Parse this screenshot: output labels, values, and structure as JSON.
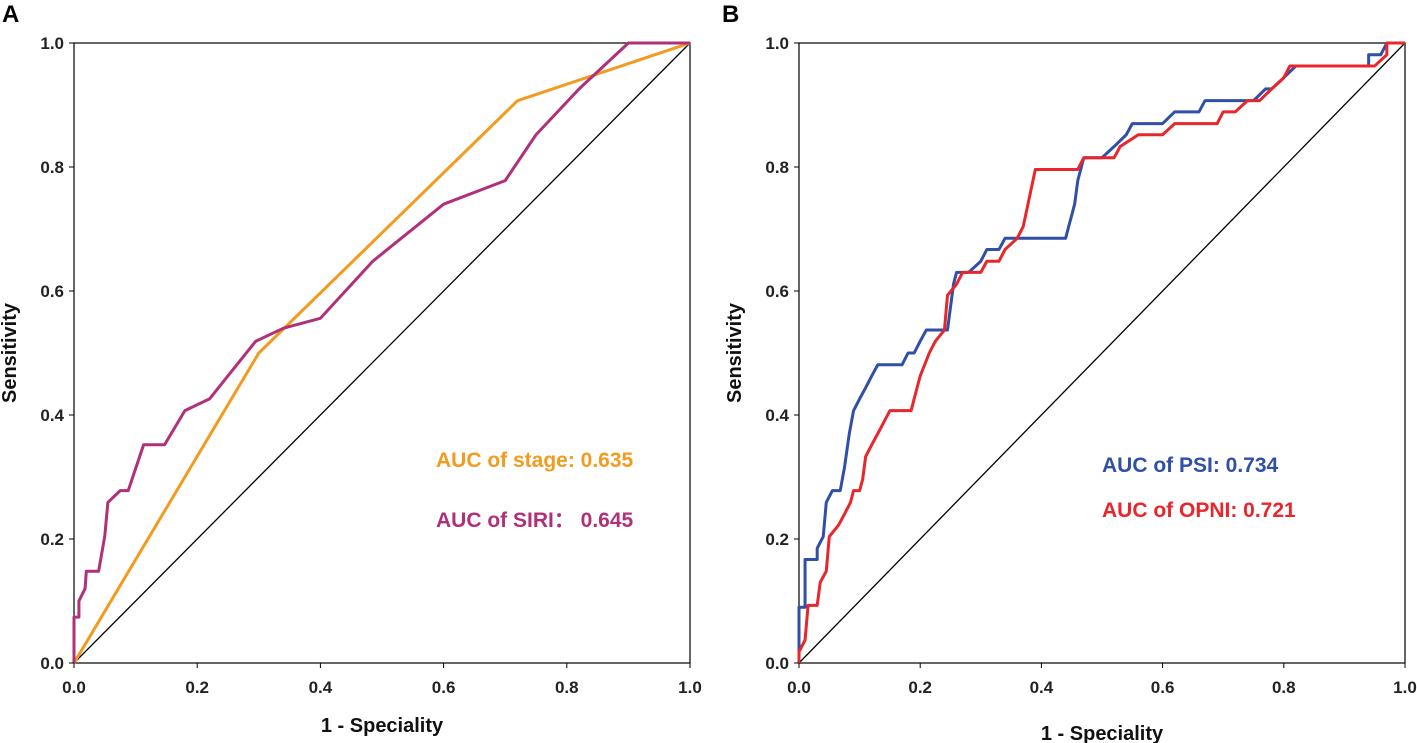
{
  "chart_data": [
    {
      "type": "line",
      "panel_label": "A",
      "xlabel": "1 - Speciality",
      "ylabel": "Sensitivity",
      "xlim": [
        0.0,
        1.0
      ],
      "ylim": [
        0.0,
        1.0
      ],
      "xticks": [
        "0.0",
        "0.2",
        "0.4",
        "0.6",
        "0.8",
        "1.0"
      ],
      "yticks": [
        "0.0",
        "0.2",
        "0.4",
        "0.6",
        "0.8",
        "1.0"
      ],
      "grid": false,
      "reference_line": [
        [
          0,
          0
        ],
        [
          1,
          1
        ]
      ],
      "series": [
        {
          "name": "stage",
          "color": "#F39B1E",
          "points": [
            [
              0,
              0
            ],
            [
              0.3,
              0.5
            ],
            [
              0.72,
              0.907
            ],
            [
              1.0,
              1.0
            ]
          ]
        },
        {
          "name": "SIRI",
          "color": "#B0307A",
          "points": [
            [
              0,
              0
            ],
            [
              0.0,
              0.074
            ],
            [
              0.008,
              0.074
            ],
            [
              0.008,
              0.1
            ],
            [
              0.018,
              0.12
            ],
            [
              0.02,
              0.148
            ],
            [
              0.04,
              0.148
            ],
            [
              0.05,
              0.205
            ],
            [
              0.055,
              0.259
            ],
            [
              0.075,
              0.278
            ],
            [
              0.088,
              0.278
            ],
            [
              0.113,
              0.352
            ],
            [
              0.147,
              0.352
            ],
            [
              0.18,
              0.407
            ],
            [
              0.22,
              0.426
            ],
            [
              0.295,
              0.519
            ],
            [
              0.34,
              0.54
            ],
            [
              0.4,
              0.556
            ],
            [
              0.485,
              0.648
            ],
            [
              0.6,
              0.74
            ],
            [
              0.7,
              0.778
            ],
            [
              0.75,
              0.852
            ],
            [
              0.82,
              0.926
            ],
            [
              0.9,
              1.0
            ],
            [
              1.0,
              1.0
            ]
          ]
        }
      ],
      "annotations": [
        {
          "text": "AUC of stage: 0.635",
          "color": "#F39B1E"
        },
        {
          "text": "AUC of SIRI： 0.645",
          "color": "#B0307A"
        }
      ]
    },
    {
      "type": "line",
      "panel_label": "B",
      "xlabel": "1 - Speciality",
      "ylabel": "Sensitivity",
      "xlim": [
        0.0,
        1.0
      ],
      "ylim": [
        0.0,
        1.0
      ],
      "xticks": [
        "0.0",
        "0.2",
        "0.4",
        "0.6",
        "0.8",
        "1.0"
      ],
      "yticks": [
        "0.0",
        "0.2",
        "0.4",
        "0.6",
        "0.8",
        "1.0"
      ],
      "grid": false,
      "reference_line": [
        [
          0,
          0
        ],
        [
          1,
          1
        ]
      ],
      "series": [
        {
          "name": "PSI",
          "color": "#2F4FA8",
          "points": [
            [
              0,
              0
            ],
            [
              0,
              0.09
            ],
            [
              0.01,
              0.09
            ],
            [
              0.01,
              0.167
            ],
            [
              0.03,
              0.167
            ],
            [
              0.03,
              0.185
            ],
            [
              0.04,
              0.204
            ],
            [
              0.045,
              0.259
            ],
            [
              0.055,
              0.278
            ],
            [
              0.068,
              0.278
            ],
            [
              0.075,
              0.315
            ],
            [
              0.083,
              0.37
            ],
            [
              0.09,
              0.407
            ],
            [
              0.1,
              0.426
            ],
            [
              0.11,
              0.444
            ],
            [
              0.12,
              0.463
            ],
            [
              0.13,
              0.481
            ],
            [
              0.17,
              0.481
            ],
            [
              0.18,
              0.5
            ],
            [
              0.19,
              0.5
            ],
            [
              0.2,
              0.519
            ],
            [
              0.21,
              0.537
            ],
            [
              0.245,
              0.537
            ],
            [
              0.25,
              0.574
            ],
            [
              0.255,
              0.611
            ],
            [
              0.26,
              0.63
            ],
            [
              0.28,
              0.63
            ],
            [
              0.3,
              0.648
            ],
            [
              0.31,
              0.667
            ],
            [
              0.33,
              0.667
            ],
            [
              0.34,
              0.685
            ],
            [
              0.44,
              0.685
            ],
            [
              0.445,
              0.704
            ],
            [
              0.45,
              0.722
            ],
            [
              0.455,
              0.741
            ],
            [
              0.46,
              0.778
            ],
            [
              0.47,
              0.815
            ],
            [
              0.5,
              0.815
            ],
            [
              0.52,
              0.833
            ],
            [
              0.54,
              0.852
            ],
            [
              0.55,
              0.87
            ],
            [
              0.6,
              0.87
            ],
            [
              0.62,
              0.889
            ],
            [
              0.66,
              0.889
            ],
            [
              0.67,
              0.907
            ],
            [
              0.75,
              0.907
            ],
            [
              0.77,
              0.926
            ],
            [
              0.78,
              0.926
            ],
            [
              0.8,
              0.944
            ],
            [
              0.82,
              0.963
            ],
            [
              0.94,
              0.963
            ],
            [
              0.94,
              0.981
            ],
            [
              0.96,
              0.981
            ],
            [
              0.97,
              1.0
            ],
            [
              1.0,
              1.0
            ]
          ]
        },
        {
          "name": "OPNI",
          "color": "#E8262B",
          "points": [
            [
              0,
              0
            ],
            [
              0,
              0.018
            ],
            [
              0.01,
              0.037
            ],
            [
              0.015,
              0.093
            ],
            [
              0.03,
              0.093
            ],
            [
              0.035,
              0.13
            ],
            [
              0.045,
              0.148
            ],
            [
              0.05,
              0.204
            ],
            [
              0.065,
              0.222
            ],
            [
              0.075,
              0.24
            ],
            [
              0.085,
              0.259
            ],
            [
              0.09,
              0.278
            ],
            [
              0.1,
              0.278
            ],
            [
              0.105,
              0.296
            ],
            [
              0.11,
              0.333
            ],
            [
              0.12,
              0.352
            ],
            [
              0.13,
              0.37
            ],
            [
              0.15,
              0.407
            ],
            [
              0.185,
              0.407
            ],
            [
              0.19,
              0.426
            ],
            [
              0.2,
              0.463
            ],
            [
              0.215,
              0.5
            ],
            [
              0.225,
              0.519
            ],
            [
              0.24,
              0.537
            ],
            [
              0.245,
              0.593
            ],
            [
              0.26,
              0.611
            ],
            [
              0.27,
              0.63
            ],
            [
              0.3,
              0.63
            ],
            [
              0.31,
              0.648
            ],
            [
              0.33,
              0.648
            ],
            [
              0.34,
              0.667
            ],
            [
              0.36,
              0.685
            ],
            [
              0.37,
              0.704
            ],
            [
              0.39,
              0.796
            ],
            [
              0.46,
              0.796
            ],
            [
              0.47,
              0.815
            ],
            [
              0.52,
              0.815
            ],
            [
              0.53,
              0.833
            ],
            [
              0.56,
              0.852
            ],
            [
              0.6,
              0.852
            ],
            [
              0.62,
              0.87
            ],
            [
              0.69,
              0.87
            ],
            [
              0.7,
              0.889
            ],
            [
              0.72,
              0.889
            ],
            [
              0.74,
              0.907
            ],
            [
              0.76,
              0.907
            ],
            [
              0.78,
              0.926
            ],
            [
              0.8,
              0.944
            ],
            [
              0.81,
              0.963
            ],
            [
              0.95,
              0.963
            ],
            [
              0.97,
              0.981
            ],
            [
              0.97,
              1.0
            ],
            [
              1.0,
              1.0
            ]
          ]
        }
      ],
      "annotations": [
        {
          "text": "AUC of PSI: 0.734",
          "color": "#2F4FA8"
        },
        {
          "text": "AUC of OPNI: 0.721",
          "color": "#E8262B"
        }
      ]
    }
  ]
}
